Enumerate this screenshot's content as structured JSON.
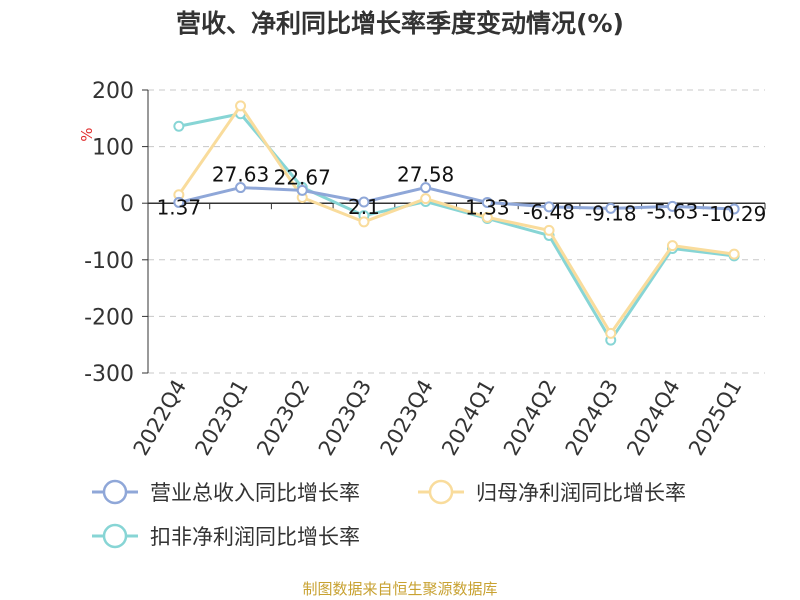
{
  "title": "营收、净利同比增长率季度变动情况(%)",
  "source": "制图数据来自恒生聚源数据库",
  "chart_data": {
    "type": "line",
    "categories": [
      "2022Q4",
      "2023Q1",
      "2023Q2",
      "2023Q3",
      "2023Q4",
      "2024Q1",
      "2024Q2",
      "2024Q3",
      "2024Q4",
      "2025Q1"
    ],
    "y_unit": "%",
    "ylim": [
      -300,
      200
    ],
    "y_ticks": [
      "200",
      "100",
      "0",
      "-100",
      "-200",
      "-300"
    ],
    "grid": "horizontal dashed",
    "legend_position": "bottom",
    "series": [
      {
        "name": "营业总收入同比增长率",
        "color": "#8fa7d8",
        "values": [
          1.37,
          27.63,
          22.67,
          2.1,
          27.58,
          1.33,
          -6.48,
          -9.18,
          -5.63,
          -10.29
        ],
        "labels": [
          "1.37",
          "27.63",
          "22.67",
          "2.1",
          "27.58",
          "1.33",
          "-6.48",
          "-9.18",
          "-5.63",
          "-10.29"
        ]
      },
      {
        "name": "归母净利润同比增长率",
        "color": "#f9dc9c",
        "values": [
          15,
          172,
          10,
          -33,
          8,
          -25,
          -48,
          -230,
          -75,
          -90
        ]
      },
      {
        "name": "扣非净利润同比增长率",
        "color": "#87d5d5",
        "values": [
          136,
          158,
          28,
          -22,
          3,
          -27,
          -57,
          -242,
          -80,
          -93
        ]
      }
    ]
  }
}
